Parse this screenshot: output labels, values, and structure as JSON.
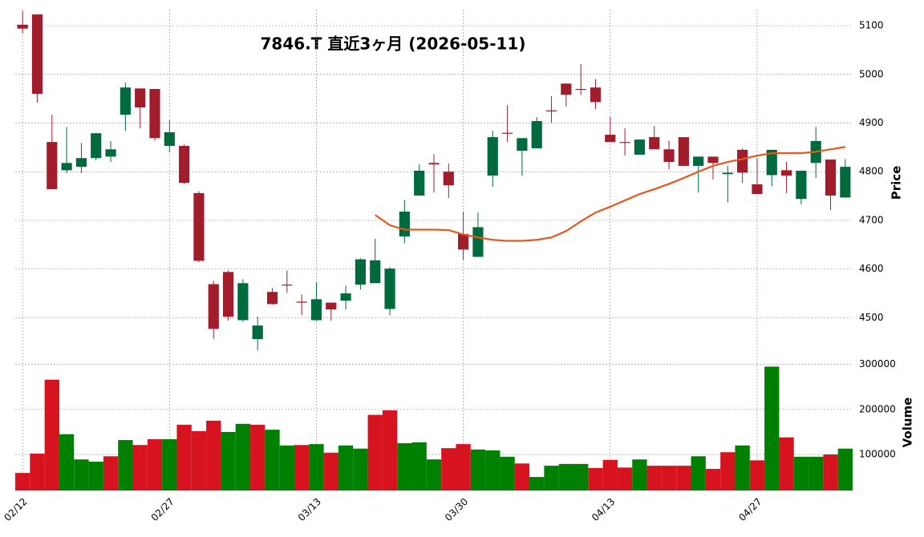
{
  "chart_data": {
    "type": "candlestick",
    "title": "7846.T  直近3ヶ月  (2026-05-11)",
    "categories": [
      "02/12",
      null,
      null,
      null,
      null,
      null,
      null,
      null,
      null,
      null,
      "02/27",
      null,
      null,
      null,
      null,
      null,
      null,
      null,
      null,
      null,
      "03/13",
      null,
      null,
      null,
      null,
      null,
      null,
      null,
      null,
      null,
      "03/30",
      null,
      null,
      null,
      null,
      null,
      null,
      null,
      null,
      null,
      "04/13",
      null,
      null,
      null,
      null,
      null,
      null,
      null,
      null,
      null,
      "04/27",
      null,
      null,
      null,
      null,
      null,
      null
    ],
    "open": [
      5102,
      5123,
      4861,
      4803,
      4810,
      4828,
      4831,
      4917,
      4971,
      4970,
      4853,
      4853,
      4756,
      4569,
      4594,
      4495,
      4456,
      4553,
      4568,
      4533,
      4495,
      4531,
      4535,
      4568,
      4571,
      4518,
      4667,
      4751,
      4818,
      4800,
      4672,
      4625,
      4792,
      4880,
      4843,
      4848,
      4926,
      4981,
      4970,
      4973,
      4876,
      4861,
      4835,
      4871,
      4846,
      4871,
      4812,
      4831,
      4795,
      4845,
      4774,
      4793,
      4803,
      4744,
      4818,
      4825,
      4747
    ],
    "high": [
      5130,
      5123,
      4917,
      4892,
      4859,
      4879,
      4863,
      4983,
      4971,
      4970,
      4906,
      4856,
      4760,
      4576,
      4597,
      4579,
      4502,
      4561,
      4597,
      4548,
      4573,
      4531,
      4566,
      4622,
      4662,
      4604,
      4742,
      4815,
      4836,
      4817,
      4718,
      4716,
      4884,
      4937,
      4869,
      4912,
      4955,
      4981,
      5021,
      4990,
      4912,
      4889,
      4866,
      4894,
      4864,
      4871,
      4831,
      4831,
      4812,
      4848,
      4828,
      4845,
      4820,
      4802,
      4892,
      4825,
      4826
    ],
    "low": [
      5084,
      4942,
      4764,
      4797,
      4797,
      4823,
      4820,
      4884,
      4889,
      4864,
      4840,
      4774,
      4614,
      4457,
      4494,
      4492,
      4433,
      4527,
      4551,
      4505,
      4494,
      4494,
      4517,
      4558,
      4571,
      4505,
      4653,
      4751,
      4757,
      4746,
      4619,
      4625,
      4769,
      4861,
      4792,
      4848,
      4901,
      4934,
      4958,
      4929,
      4861,
      4833,
      4835,
      4846,
      4805,
      4812,
      4757,
      4784,
      4737,
      4777,
      4754,
      4770,
      4756,
      4733,
      4787,
      4721,
      4747
    ],
    "close": [
      5094,
      4960,
      4764,
      4818,
      4828,
      4879,
      4846,
      4973,
      4932,
      4869,
      4881,
      4777,
      4617,
      4477,
      4502,
      4571,
      4484,
      4528,
      4566,
      4531,
      4538,
      4517,
      4550,
      4620,
      4618,
      4601,
      4718,
      4802,
      4815,
      4772,
      4640,
      4686,
      4871,
      4878,
      4869,
      4904,
      4925,
      4958,
      4969,
      4943,
      4861,
      4860,
      4866,
      4846,
      4820,
      4812,
      4831,
      4818,
      4798,
      4798,
      4754,
      4845,
      4792,
      4802,
      4863,
      4751,
      4810
    ],
    "up_color": "#006a3f",
    "down_color": "#a11d2b",
    "ylim": [
      4420,
      5133
    ],
    "yticks": [
      4500,
      4600,
      4700,
      4800,
      4900,
      5000,
      5100
    ],
    "ylabel": "Price",
    "grid": true,
    "ma": {
      "color": "#e8581c",
      "values": [
        null,
        null,
        null,
        null,
        null,
        null,
        null,
        null,
        null,
        null,
        null,
        null,
        null,
        null,
        null,
        null,
        null,
        null,
        null,
        null,
        null,
        null,
        null,
        null,
        4711,
        4690,
        4681,
        4681,
        4681,
        4680,
        4671,
        4665,
        4660,
        4658,
        4658,
        4660,
        4665,
        4678,
        4698,
        4716,
        4728,
        4741,
        4754,
        4764,
        4775,
        4787,
        4800,
        4812,
        4820,
        4826,
        4833,
        4838,
        4838,
        4838,
        4841,
        4846,
        4851
      ]
    },
    "volume": {
      "values": [
        59000,
        102000,
        266000,
        145000,
        89000,
        84000,
        96000,
        132000,
        121000,
        134000,
        134000,
        166000,
        152000,
        175000,
        150000,
        168000,
        166000,
        155000,
        120000,
        121000,
        123000,
        104000,
        120000,
        113000,
        188000,
        198000,
        125000,
        127000,
        89000,
        114000,
        123000,
        111000,
        109000,
        95000,
        80000,
        50000,
        75000,
        79000,
        79000,
        70000,
        88000,
        71000,
        89000,
        75000,
        75000,
        75000,
        96000,
        68000,
        105000,
        120000,
        87000,
        295000,
        138000,
        95000,
        95000,
        100000,
        113000
      ],
      "up_color": "#008000",
      "down_color": "#d7131f",
      "ylim": [
        20000,
        310000
      ],
      "yticks": [
        100000,
        200000,
        300000
      ],
      "ylabel": "Volume"
    }
  }
}
